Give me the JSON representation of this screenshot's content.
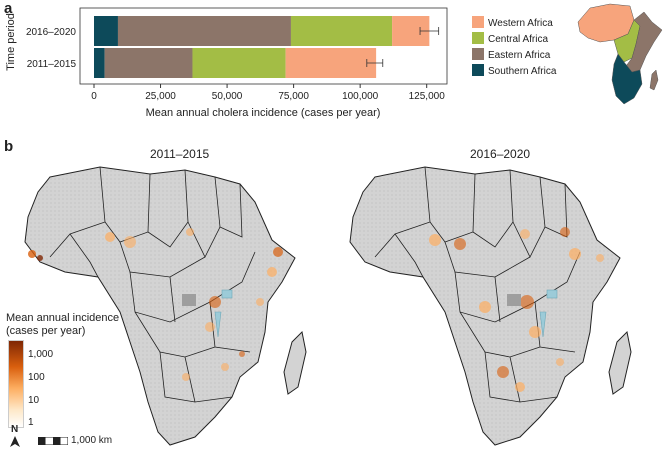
{
  "panels": {
    "a": "a",
    "b": "b"
  },
  "chart_data": {
    "type": "bar",
    "orientation": "horizontal",
    "stacked": true,
    "categories": [
      "2016–2020",
      "2011–2015"
    ],
    "series": [
      {
        "name": "Southern Africa",
        "color": "#0d4a5a",
        "values": [
          9000,
          4000
        ]
      },
      {
        "name": "Eastern Africa",
        "color": "#8c7569",
        "values": [
          65000,
          33000
        ]
      },
      {
        "name": "Central Africa",
        "color": "#a3bd45",
        "values": [
          38000,
          35000
        ]
      },
      {
        "name": "Western Africa",
        "color": "#f7a47c",
        "values": [
          14000,
          34000
        ]
      }
    ],
    "error_bars": [
      {
        "category": "2016–2020",
        "low": 122500,
        "high": 129500
      },
      {
        "category": "2011–2015",
        "low": 102500,
        "high": 108500
      }
    ],
    "xlim": [
      0,
      130000
    ],
    "xticks": [
      0,
      25000,
      50000,
      75000,
      100000,
      125000
    ],
    "xtick_labels": [
      "0",
      "25,000",
      "50,000",
      "75,000",
      "100,000",
      "125,000"
    ],
    "xlabel": "Mean annual cholera incidence (cases per year)",
    "ylabel": "Time period",
    "legend": [
      "Western Africa",
      "Central Africa",
      "Eastern Africa",
      "Southern Africa"
    ]
  },
  "maps": {
    "left_title": "2011–2015",
    "right_title": "2016–2020"
  },
  "map_legend": {
    "title_line1": "Mean annual incidence",
    "title_line2": "(cases per year)",
    "ticks": [
      "1,000",
      "100",
      "10",
      "1"
    ],
    "colors": [
      "#7f2704",
      "#d95f0e",
      "#fdae61",
      "#fee8c8",
      "#ffffff"
    ]
  },
  "scale": {
    "north": "N",
    "label": "1,000 km"
  },
  "colors": {
    "land": "#d3d3d3",
    "border": "#222222",
    "water": "#9ccbd8",
    "ocean": "#ffffff"
  }
}
